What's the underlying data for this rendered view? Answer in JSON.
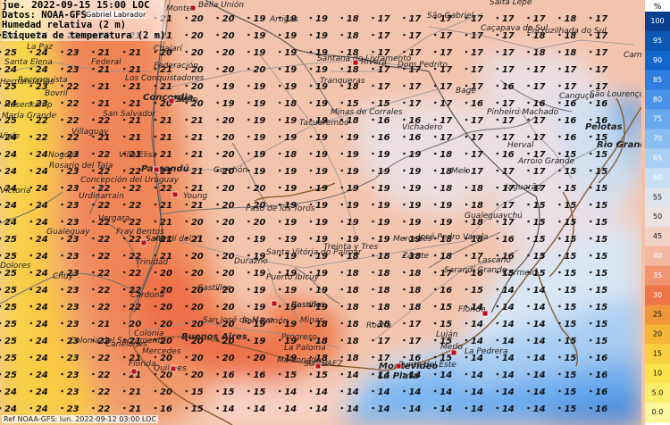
{
  "header": {
    "line1": "jue. 2022-09-15 15:00 LOC",
    "line2": "Datos: NOAA-GFS",
    "author": "Gabriel Labrador",
    "line3": "Humedad relativa (2 m)",
    "line4": "Etiqueta de temperatura (2 m)"
  },
  "footer": "Ref NOAA-GFS: lun. 2022-09-12 03:00 LOC",
  "legend": {
    "unit": "%",
    "levels": [
      "100",
      "95",
      "90",
      "85",
      "80",
      "75",
      "70",
      "65",
      "60",
      "55",
      "50",
      "45",
      "40",
      "35",
      "30",
      "25",
      "20",
      "15",
      "10",
      "5.0",
      "0.0"
    ],
    "colors": [
      "#0a3f8f",
      "#0c57b4",
      "#1466cf",
      "#2f7ddf",
      "#4a91e8",
      "#68a9ee",
      "#88bdf2",
      "#a8cff4",
      "#c6dff5",
      "#dde4ee",
      "#ece2e2",
      "#f3d2c6",
      "#f3b8a0",
      "#f19570",
      "#ee7548",
      "#f0963a",
      "#f5b536",
      "#f8d03f",
      "#f9e24b",
      "#fbee6a",
      "#fdf8a0"
    ]
  },
  "icons": {
    "station": "city-marker-icon",
    "capital": "capital-square-icon"
  },
  "colors": {
    "coast": "#8a5a2e",
    "border": "#606060",
    "road": "#888888",
    "river": "#666666"
  },
  "places": [
    {
      "name": "Salta Lepe"
    },
    {
      "name": "São Gabriel"
    },
    {
      "name": "Caçapava do Sul"
    },
    {
      "name": "Encruzilhada do Sul"
    },
    {
      "name": "La Paz"
    },
    {
      "name": "Alegrete"
    },
    {
      "name": "Monte"
    },
    {
      "name": "Bella Unión"
    },
    {
      "name": "Artigas"
    },
    {
      "name": "Santa Elena"
    },
    {
      "name": "Reconquista"
    },
    {
      "name": "Chajarí"
    },
    {
      "name": "Federal"
    },
    {
      "name": "Federación"
    },
    {
      "name": "Hernandarias"
    },
    {
      "name": "Santana do Livramento"
    },
    {
      "name": "Rivera"
    },
    {
      "name": "Dom Pedrito"
    },
    {
      "name": "Camaquã"
    },
    {
      "name": "Bovril"
    },
    {
      "name": "Los Conquistadores"
    },
    {
      "name": "Tranqueras"
    },
    {
      "name": "Bagé"
    },
    {
      "name": "Canguçu"
    },
    {
      "name": "São Lourenço"
    },
    {
      "name": "Hasenkamp"
    },
    {
      "name": "María Grande"
    },
    {
      "name": "Salto"
    },
    {
      "name": "Concordia"
    },
    {
      "name": "San Salvador"
    },
    {
      "name": "Tacuarembó"
    },
    {
      "name": "Minas de Corrales"
    },
    {
      "name": "Pinheiro Machado"
    },
    {
      "name": "Vichadero"
    },
    {
      "name": "Viale"
    },
    {
      "name": "Villaguay"
    },
    {
      "name": "Pelotas"
    },
    {
      "name": "Rio Grande"
    },
    {
      "name": "Herval"
    },
    {
      "name": "Nogoyá"
    },
    {
      "name": "Rosario del Tala"
    },
    {
      "name": "Villa Elisa"
    },
    {
      "name": "Paysandú"
    },
    {
      "name": "Concepción del Uruguay"
    },
    {
      "name": "Gorchón"
    },
    {
      "name": "Melo"
    },
    {
      "name": "Arroio Grande"
    },
    {
      "name": "Jaguarão"
    },
    {
      "name": "Victoria"
    },
    {
      "name": "Urdinarrain"
    },
    {
      "name": "Young"
    },
    {
      "name": "Paso de los Toros"
    },
    {
      "name": "Gualeguaychú"
    },
    {
      "name": "Vergara"
    },
    {
      "name": "Gualeguay"
    },
    {
      "name": "Fray Bentos"
    },
    {
      "name": "Mercedes"
    },
    {
      "name": "Sarandí del Yí"
    },
    {
      "name": "Treinta y Tres"
    },
    {
      "name": "José Pedro Varela"
    },
    {
      "name": "Zárate"
    },
    {
      "name": "Dolores"
    },
    {
      "name": "Trinidad"
    },
    {
      "name": "Durazno"
    },
    {
      "name": "Santa Vitória do Palmar"
    },
    {
      "name": "Lascano"
    },
    {
      "name": "Sarandí Grande"
    },
    {
      "name": "Puerto Ibicuy"
    },
    {
      "name": "Chuy"
    },
    {
      "name": "Carmelo"
    },
    {
      "name": "Cardona"
    },
    {
      "name": "Castillos"
    },
    {
      "name": "Florida"
    },
    {
      "name": "Rosario"
    },
    {
      "name": "San José de Mayo"
    },
    {
      "name": "San Ramón"
    },
    {
      "name": "Minas"
    },
    {
      "name": "Rocha"
    },
    {
      "name": "Luján"
    },
    {
      "name": "Colonia del Sacramento"
    },
    {
      "name": "Colonia"
    },
    {
      "name": "Buenos Aires"
    },
    {
      "name": "Canelones"
    },
    {
      "name": "Progreso"
    },
    {
      "name": "La Paloma"
    },
    {
      "name": "La Pedrera"
    },
    {
      "name": "Merlo"
    },
    {
      "name": "Montevideo"
    },
    {
      "name": "Maldonado"
    },
    {
      "name": "Punta del Este"
    },
    {
      "name": "La Plata"
    },
    {
      "name": "Quilmes"
    },
    {
      "name": "Mercedes"
    },
    {
      "name": "Salto"
    },
    {
      "name": "Puerto"
    },
    {
      "name": "SUMU"
    },
    {
      "name": "SAEZ"
    },
    {
      "name": "Florida"
    },
    {
      "name": "Castillos"
    }
  ],
  "temp_grid": [
    [
      "25",
      "25",
      "23",
      "21",
      "21",
      "21",
      "20",
      "20",
      "19",
      "19",
      "19",
      "18",
      "17",
      "17",
      "17",
      "17",
      "17",
      "17",
      "18",
      "17"
    ],
    [
      "24",
      "24",
      "22",
      "21",
      "21",
      "21",
      "20",
      "20",
      "19",
      "19",
      "19",
      "18",
      "17",
      "17",
      "17",
      "17",
      "17",
      "18",
      "18",
      "17"
    ],
    [
      "25",
      "24",
      "23",
      "21",
      "21",
      "20",
      "20",
      "20",
      "19",
      "19",
      "19",
      "18",
      "17",
      "17",
      "17",
      "17",
      "17",
      "18",
      "18",
      "17"
    ],
    [
      "24",
      "24",
      "23",
      "21",
      "21",
      "21",
      "20",
      "20",
      "20",
      "19",
      "19",
      "18",
      "17",
      "17",
      "17",
      "17",
      "17",
      "17",
      "17",
      "17"
    ],
    [
      "25",
      "23",
      "22",
      "21",
      "21",
      "21",
      "20",
      "19",
      "19",
      "19",
      "19",
      "18",
      "17",
      "17",
      "17",
      "17",
      "16",
      "17",
      "17",
      "17"
    ],
    [
      "24",
      "23",
      "22",
      "21",
      "21",
      "20",
      "20",
      "19",
      "19",
      "18",
      "19",
      "15",
      "15",
      "17",
      "17",
      "16",
      "17",
      "16",
      "16",
      "16"
    ],
    [
      "25",
      "22",
      "22",
      "22",
      "21",
      "21",
      "21",
      "20",
      "19",
      "19",
      "19",
      "18",
      "16",
      "16",
      "17",
      "17",
      "17",
      "17",
      "16",
      "16"
    ],
    [
      "24",
      "22",
      "22",
      "21",
      "21",
      "21",
      "21",
      "20",
      "19",
      "19",
      "19",
      "19",
      "16",
      "16",
      "17",
      "17",
      "17",
      "17",
      "16",
      "15"
    ],
    [
      "24",
      "24",
      "23",
      "22",
      "21",
      "21",
      "21",
      "20",
      "19",
      "18",
      "19",
      "19",
      "19",
      "19",
      "18",
      "17",
      "16",
      "17",
      "15",
      "15"
    ],
    [
      "24",
      "24",
      "23",
      "22",
      "22",
      "21",
      "21",
      "20",
      "19",
      "19",
      "19",
      "19",
      "19",
      "19",
      "18",
      "17",
      "17",
      "17",
      "15",
      "15"
    ],
    [
      "24",
      "24",
      "23",
      "22",
      "22",
      "22",
      "21",
      "20",
      "20",
      "19",
      "19",
      "19",
      "19",
      "19",
      "18",
      "18",
      "17",
      "17",
      "15",
      "15"
    ],
    [
      "24",
      "24",
      "23",
      "22",
      "22",
      "21",
      "21",
      "20",
      "20",
      "19",
      "19",
      "19",
      "19",
      "19",
      "19",
      "18",
      "17",
      "15",
      "15",
      "15"
    ],
    [
      "24",
      "24",
      "23",
      "22",
      "22",
      "21",
      "20",
      "20",
      "20",
      "19",
      "19",
      "19",
      "19",
      "19",
      "19",
      "18",
      "17",
      "15",
      "15",
      "15"
    ],
    [
      "25",
      "24",
      "23",
      "22",
      "22",
      "21",
      "21",
      "20",
      "19",
      "19",
      "19",
      "19",
      "19",
      "19",
      "18",
      "18",
      "16",
      "15",
      "15",
      "15"
    ],
    [
      "25",
      "24",
      "23",
      "22",
      "22",
      "21",
      "20",
      "20",
      "19",
      "19",
      "19",
      "18",
      "18",
      "18",
      "18",
      "17",
      "16",
      "15",
      "15",
      "15"
    ],
    [
      "25",
      "24",
      "23",
      "22",
      "22",
      "20",
      "20",
      "20",
      "19",
      "19",
      "19",
      "18",
      "18",
      "18",
      "17",
      "16",
      "15",
      "15",
      "15",
      "15"
    ],
    [
      "25",
      "24",
      "23",
      "22",
      "22",
      "20",
      "20",
      "20",
      "19",
      "19",
      "19",
      "18",
      "18",
      "18",
      "16",
      "15",
      "14",
      "14",
      "15",
      "15"
    ],
    [
      "25",
      "24",
      "23",
      "22",
      "22",
      "20",
      "20",
      "20",
      "19",
      "19",
      "19",
      "18",
      "18",
      "18",
      "15",
      "14",
      "14",
      "14",
      "15",
      "15"
    ],
    [
      "25",
      "24",
      "23",
      "21",
      "20",
      "20",
      "20",
      "20",
      "19",
      "19",
      "18",
      "18",
      "18",
      "17",
      "15",
      "14",
      "14",
      "14",
      "15",
      "15"
    ],
    [
      "25",
      "24",
      "23",
      "22",
      "21",
      "20",
      "20",
      "20",
      "19",
      "19",
      "18",
      "18",
      "17",
      "17",
      "15",
      "14",
      "14",
      "14",
      "15",
      "15"
    ],
    [
      "25",
      "24",
      "23",
      "22",
      "21",
      "20",
      "20",
      "20",
      "20",
      "19",
      "18",
      "18",
      "17",
      "16",
      "15",
      "14",
      "14",
      "14",
      "15",
      "16"
    ],
    [
      "25",
      "24",
      "23",
      "22",
      "21",
      "20",
      "20",
      "16",
      "16",
      "15",
      "15",
      "14",
      "14",
      "14",
      "14",
      "14",
      "14",
      "14",
      "15",
      "16"
    ],
    [
      "24",
      "24",
      "23",
      "22",
      "21",
      "20",
      "15",
      "15",
      "15",
      "14",
      "14",
      "14",
      "14",
      "14",
      "14",
      "14",
      "14",
      "14",
      "15",
      "16"
    ],
    [
      "24",
      "24",
      "23",
      "22",
      "21",
      "16",
      "15",
      "14",
      "14",
      "14",
      "14",
      "14",
      "14",
      "14",
      "14",
      "14",
      "14",
      "14",
      "15",
      "16"
    ]
  ]
}
